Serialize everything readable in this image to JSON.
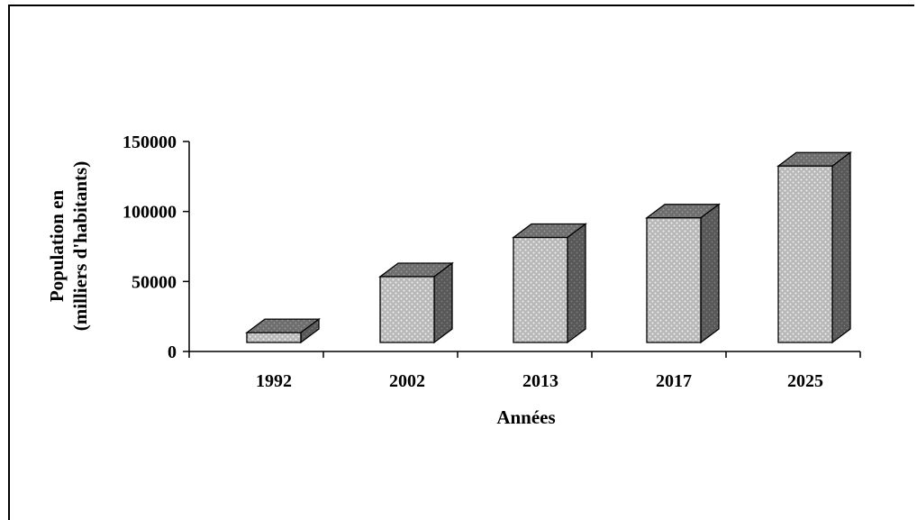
{
  "chart_data": {
    "type": "bar",
    "style": "3d-column",
    "categories": [
      "1992",
      "2002",
      "2013",
      "2017",
      "2025"
    ],
    "values": [
      7000,
      47000,
      75000,
      89000,
      126000
    ],
    "xlabel": "Années",
    "ylabel_lines": [
      "Population en",
      "(milliers  d'habitants)"
    ],
    "ylim": [
      0,
      150000
    ],
    "yticks": [
      0,
      50000,
      100000,
      150000
    ],
    "ytick_labels": [
      "0",
      "50000",
      "100000",
      "150000"
    ],
    "grid": false,
    "legend": "none",
    "colors": {
      "front_face": "#b8b8b8",
      "front_dots": "#f2f2f2",
      "top_face": "#6e6e6e",
      "side_face": "#585858",
      "outline": "#000000"
    }
  }
}
